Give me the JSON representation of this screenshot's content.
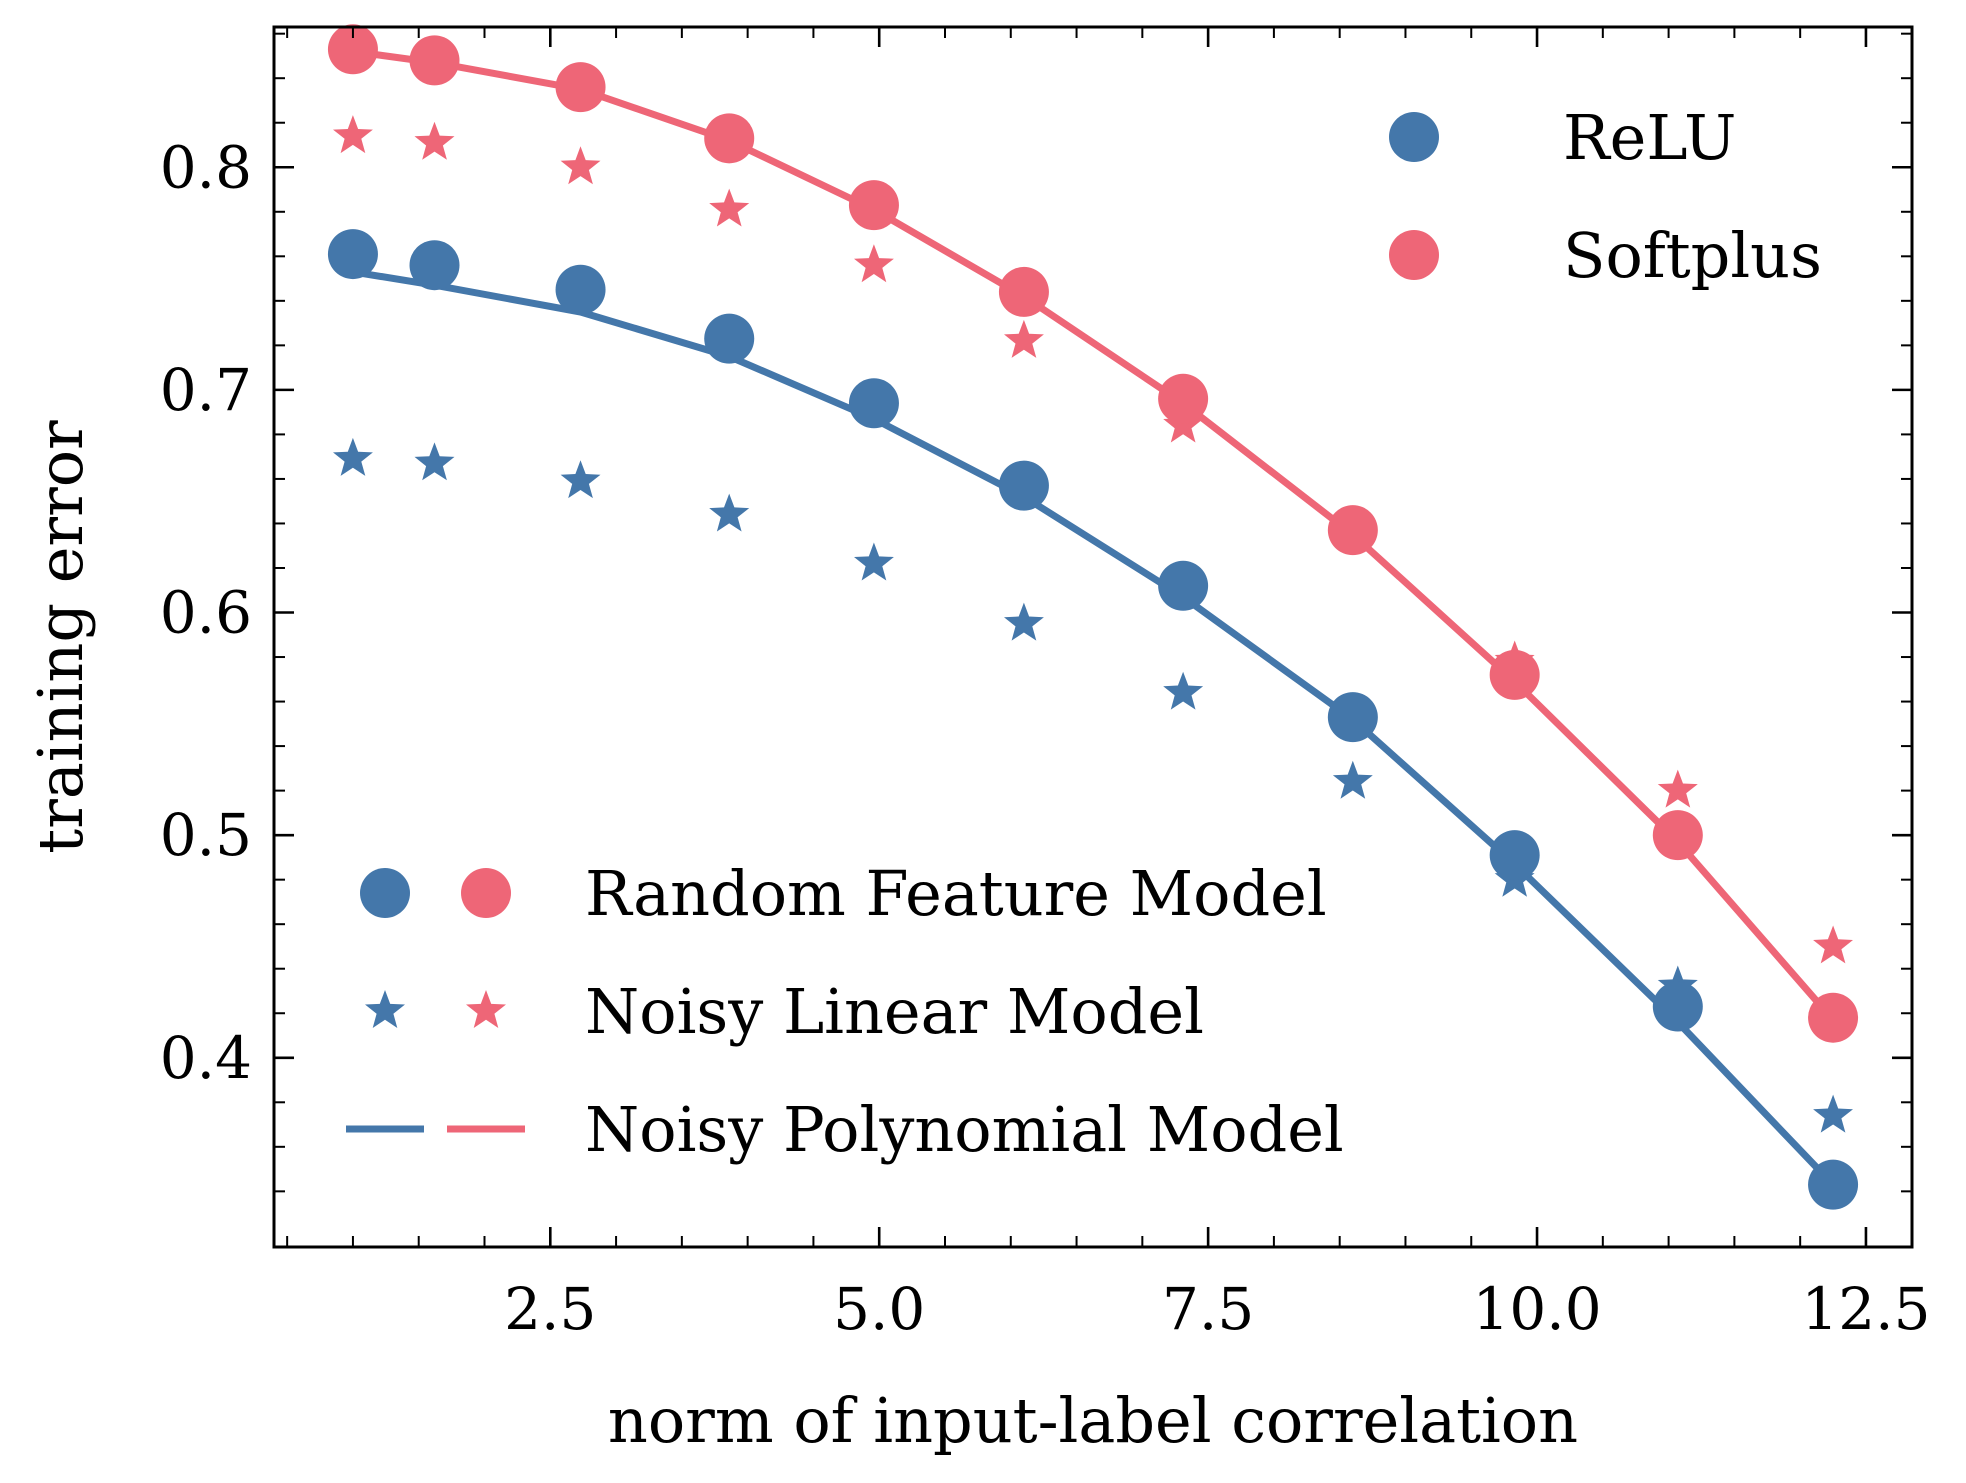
{
  "chart_data": {
    "type": "scatter",
    "xlabel": "norm of input-label correlation",
    "ylabel": "training error",
    "xlim": [
      0.4,
      12.85
    ],
    "ylim": [
      0.315,
      0.863
    ],
    "x_ticks": [
      2.5,
      5.0,
      7.5,
      10.0,
      12.5
    ],
    "x_tick_labels": [
      "2.5",
      "5.0",
      "7.5",
      "10.0",
      "12.5"
    ],
    "y_ticks": [
      0.4,
      0.5,
      0.6,
      0.7,
      0.8
    ],
    "y_tick_labels": [
      "0.4",
      "0.5",
      "0.6",
      "0.7",
      "0.8"
    ],
    "grid": false,
    "x": [
      1.0,
      1.62,
      2.73,
      3.86,
      4.96,
      6.1,
      7.31,
      8.6,
      9.83,
      11.07,
      12.25
    ],
    "series": [
      {
        "name": "ReLU",
        "model": "Random Feature Model",
        "marker": "circle",
        "color": "#4477AA",
        "values": [
          0.761,
          0.756,
          0.745,
          0.723,
          0.694,
          0.657,
          0.612,
          0.553,
          0.491,
          0.423,
          0.343
        ]
      },
      {
        "name": "ReLU",
        "model": "Noisy Linear Model",
        "marker": "star",
        "color": "#4477AA",
        "values": [
          0.669,
          0.667,
          0.659,
          0.644,
          0.622,
          0.595,
          0.564,
          0.524,
          0.48,
          0.432,
          0.374
        ]
      },
      {
        "name": "ReLU",
        "model": "Noisy Polynomial Model",
        "marker": "line",
        "color": "#4477AA",
        "values": [
          0.753,
          0.747,
          0.735,
          0.715,
          0.687,
          0.652,
          0.607,
          0.552,
          0.487,
          0.416,
          0.343
        ]
      },
      {
        "name": "Softplus",
        "model": "Random Feature Model",
        "marker": "circle",
        "color": "#EE6677",
        "values": [
          0.853,
          0.848,
          0.836,
          0.813,
          0.783,
          0.744,
          0.696,
          0.637,
          0.572,
          0.5,
          0.418
        ]
      },
      {
        "name": "Softplus",
        "model": "Noisy Linear Model",
        "marker": "star",
        "color": "#EE6677",
        "values": [
          0.814,
          0.811,
          0.8,
          0.781,
          0.756,
          0.722,
          0.684,
          0.637,
          0.578,
          0.52,
          0.45
        ]
      },
      {
        "name": "Softplus",
        "model": "Noisy Polynomial Model",
        "marker": "line",
        "color": "#EE6677",
        "values": [
          0.852,
          0.847,
          0.835,
          0.812,
          0.781,
          0.742,
          0.694,
          0.635,
          0.569,
          0.497,
          0.417
        ]
      }
    ],
    "legend_activation": {
      "placement": "upper-right",
      "entries": [
        {
          "label": "ReLU",
          "color": "#4477AA"
        },
        {
          "label": "Softplus",
          "color": "#EE6677"
        }
      ]
    },
    "legend_model": {
      "placement": "lower-left",
      "entries": [
        {
          "label": "Random Feature Model",
          "marker": "circle"
        },
        {
          "label": "Noisy Linear Model",
          "marker": "star"
        },
        {
          "label": "Noisy Polynomial Model",
          "marker": "line"
        }
      ]
    }
  }
}
